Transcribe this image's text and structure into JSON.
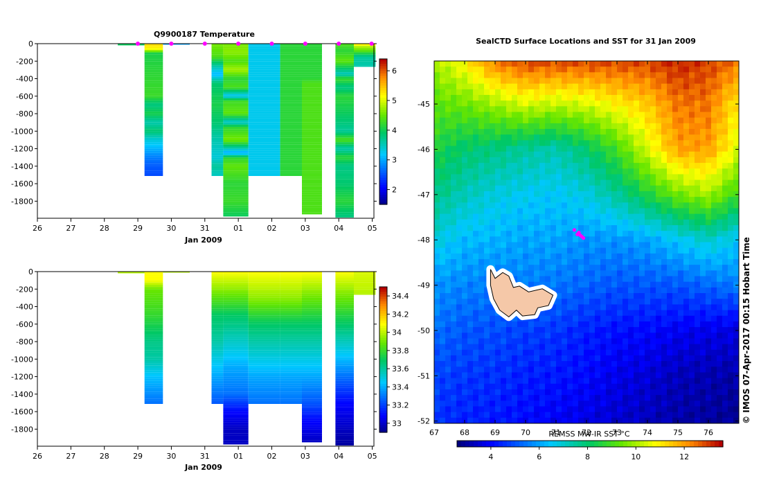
{
  "chart_data": [
    {
      "id": "temperature-section",
      "type": "heatmap",
      "title": "Q9900187  Temperature",
      "xlabel": "Jan 2009",
      "x_ticks": [
        "26",
        "27",
        "28",
        "29",
        "30",
        "31",
        "01",
        "02",
        "03",
        "04",
        "05"
      ],
      "y_ticks": [
        "0",
        "-200",
        "-400",
        "-600",
        "-800",
        "-1000",
        "-1200",
        "-1400",
        "-1600",
        "-1800"
      ],
      "xlim": [
        26,
        36.05
      ],
      "ylim": [
        -1995,
        0
      ],
      "colorbar_ticks": [
        "2",
        "3",
        "4",
        "5",
        "6"
      ],
      "colorbar_range": [
        1.5,
        6.4
      ],
      "surface_markers_x": [
        29.0,
        30.0,
        31.0,
        32.0,
        33.0,
        34.0,
        35.0,
        35.98
      ],
      "columns": [
        {
          "x0": 28.4,
          "x1": 29.2,
          "maxdepth": 20,
          "profile": [
            [
              0,
              4.0
            ],
            [
              20,
              4.0
            ]
          ]
        },
        {
          "x0": 29.2,
          "x1": 29.75,
          "maxdepth": 1505,
          "profile": [
            [
              0,
              5.4
            ],
            [
              60,
              5.2
            ],
            [
              110,
              4.1
            ],
            [
              300,
              4.2
            ],
            [
              600,
              4.3
            ],
            [
              700,
              3.8
            ],
            [
              800,
              4.1
            ],
            [
              900,
              3.6
            ],
            [
              1000,
              3.9
            ],
            [
              1100,
              3.4
            ],
            [
              1200,
              3.1
            ],
            [
              1300,
              2.8
            ],
            [
              1400,
              2.6
            ],
            [
              1505,
              2.5
            ]
          ]
        },
        {
          "x0": 29.75,
          "x1": 30.55,
          "maxdepth": 10,
          "profile": [
            [
              0,
              3.0
            ],
            [
              10,
              3.0
            ]
          ]
        },
        {
          "x0": 31.2,
          "x1": 31.55,
          "maxdepth": 1510,
          "profile": [
            [
              0,
              4.6
            ],
            [
              150,
              4.4
            ],
            [
              250,
              3.7
            ],
            [
              350,
              3.1
            ],
            [
              450,
              3.9
            ],
            [
              700,
              4.1
            ],
            [
              900,
              3.9
            ],
            [
              1100,
              3.6
            ],
            [
              1300,
              3.4
            ],
            [
              1400,
              3.7
            ],
            [
              1510,
              3.5
            ]
          ]
        },
        {
          "x0": 31.55,
          "x1": 32.3,
          "maxdepth": 1975,
          "profile": [
            [
              0,
              4.6
            ],
            [
              100,
              4.7
            ],
            [
              200,
              4.4
            ],
            [
              300,
              4.8
            ],
            [
              400,
              4.2
            ],
            [
              500,
              4.4
            ],
            [
              600,
              3.2
            ],
            [
              650,
              4.3
            ],
            [
              800,
              4.5
            ],
            [
              900,
              3.4
            ],
            [
              950,
              4.2
            ],
            [
              1100,
              4.6
            ],
            [
              1150,
              4.1
            ],
            [
              1250,
              3.0
            ],
            [
              1300,
              4.2
            ],
            [
              1400,
              4.5
            ],
            [
              1600,
              4.2
            ],
            [
              1800,
              4.3
            ],
            [
              1975,
              4.0
            ]
          ]
        },
        {
          "x0": 32.3,
          "x1": 33.25,
          "maxdepth": 1510,
          "profile": [
            [
              0,
              3.3
            ],
            [
              1510,
              3.3
            ]
          ]
        },
        {
          "x0": 33.25,
          "x1": 33.9,
          "maxdepth": 1510,
          "profile": [
            [
              0,
              4.2
            ],
            [
              1510,
              4.2
            ]
          ]
        },
        {
          "x0": 33.9,
          "x1": 34.5,
          "maxdepth": 1950,
          "profile": [
            [
              0,
              4.2
            ],
            [
              400,
              4.2
            ],
            [
              450,
              4.4
            ],
            [
              1950,
              4.4
            ]
          ]
        },
        {
          "x0": 34.9,
          "x1": 35.45,
          "maxdepth": 1985,
          "profile": [
            [
              0,
              4.4
            ],
            [
              80,
              4.2
            ],
            [
              200,
              4.5
            ],
            [
              350,
              3.5
            ],
            [
              400,
              4.3
            ],
            [
              500,
              3.8
            ],
            [
              600,
              4.2
            ],
            [
              800,
              4.0
            ],
            [
              1000,
              3.7
            ],
            [
              1100,
              4.4
            ],
            [
              1200,
              3.6
            ],
            [
              1300,
              4.2
            ],
            [
              1400,
              3.8
            ],
            [
              1600,
              3.9
            ],
            [
              1800,
              4.2
            ],
            [
              1985,
              3.8
            ]
          ]
        },
        {
          "x0": 35.45,
          "x1": 36.1,
          "maxdepth": 265,
          "profile": [
            [
              0,
              5.4
            ],
            [
              30,
              4.9
            ],
            [
              80,
              4.5
            ],
            [
              150,
              3.7
            ],
            [
              265,
              3.6
            ]
          ]
        }
      ]
    },
    {
      "id": "salinity-section",
      "type": "heatmap",
      "xlabel": "Jan 2009",
      "x_ticks": [
        "26",
        "27",
        "28",
        "29",
        "30",
        "31",
        "01",
        "02",
        "03",
        "04",
        "05"
      ],
      "y_ticks": [
        "0",
        "-200",
        "-400",
        "-600",
        "-800",
        "-1000",
        "-1200",
        "-1400",
        "-1600",
        "-1800"
      ],
      "xlim": [
        26,
        36.05
      ],
      "ylim": [
        -1995,
        0
      ],
      "colorbar_ticks": [
        "33",
        "33.2",
        "33.4",
        "33.6",
        "33.8",
        "34",
        "34.2",
        "34.4"
      ],
      "colorbar_range": [
        32.9,
        34.5
      ],
      "columns": [
        {
          "x0": 28.4,
          "x1": 29.2,
          "maxdepth": 20,
          "profile": [
            [
              0,
              34.0
            ],
            [
              20,
              34.0
            ]
          ]
        },
        {
          "x0": 29.2,
          "x1": 29.75,
          "maxdepth": 1505,
          "profile": [
            [
              0,
              34.1
            ],
            [
              100,
              34.1
            ],
            [
              200,
              33.9
            ],
            [
              500,
              33.8
            ],
            [
              800,
              33.65
            ],
            [
              1000,
              33.6
            ],
            [
              1200,
              33.45
            ],
            [
              1400,
              33.35
            ],
            [
              1505,
              33.3
            ]
          ]
        },
        {
          "x0": 29.75,
          "x1": 30.55,
          "maxdepth": 10,
          "profile": [
            [
              0,
              34.0
            ],
            [
              10,
              34.0
            ]
          ]
        },
        {
          "x0": 31.2,
          "x1": 31.55,
          "maxdepth": 1510,
          "profile": [
            [
              0,
              34.1
            ],
            [
              200,
              33.95
            ],
            [
              500,
              33.7
            ],
            [
              800,
              33.6
            ],
            [
              1100,
              33.45
            ],
            [
              1300,
              33.35
            ],
            [
              1510,
              33.25
            ]
          ]
        },
        {
          "x0": 31.55,
          "x1": 32.3,
          "maxdepth": 1975,
          "profile": [
            [
              0,
              34.1
            ],
            [
              200,
              33.95
            ],
            [
              500,
              33.7
            ],
            [
              800,
              33.55
            ],
            [
              1100,
              33.4
            ],
            [
              1400,
              33.3
            ],
            [
              1600,
              33.1
            ],
            [
              1800,
              33.0
            ],
            [
              1975,
              33.0
            ]
          ]
        },
        {
          "x0": 32.3,
          "x1": 33.25,
          "maxdepth": 1510,
          "profile": [
            [
              0,
              34.1
            ],
            [
              300,
              33.95
            ],
            [
              600,
              33.7
            ],
            [
              900,
              33.55
            ],
            [
              1200,
              33.4
            ],
            [
              1510,
              33.3
            ]
          ]
        },
        {
          "x0": 33.25,
          "x1": 33.9,
          "maxdepth": 1510,
          "profile": [
            [
              0,
              34.1
            ],
            [
              300,
              33.95
            ],
            [
              600,
              33.7
            ],
            [
              900,
              33.55
            ],
            [
              1200,
              33.4
            ],
            [
              1510,
              33.3
            ]
          ]
        },
        {
          "x0": 33.9,
          "x1": 34.5,
          "maxdepth": 1950,
          "profile": [
            [
              0,
              34.1
            ],
            [
              300,
              33.9
            ],
            [
              600,
              33.7
            ],
            [
              900,
              33.55
            ],
            [
              1200,
              33.4
            ],
            [
              1500,
              33.25
            ],
            [
              1700,
              33.1
            ],
            [
              1950,
              33.0
            ]
          ]
        },
        {
          "x0": 34.9,
          "x1": 35.45,
          "maxdepth": 1985,
          "profile": [
            [
              0,
              34.1
            ],
            [
              300,
              33.9
            ],
            [
              600,
              33.7
            ],
            [
              900,
              33.5
            ],
            [
              1200,
              33.3
            ],
            [
              1500,
              33.1
            ],
            [
              1800,
              33.0
            ],
            [
              1985,
              32.95
            ]
          ]
        },
        {
          "x0": 35.45,
          "x1": 36.1,
          "maxdepth": 265,
          "profile": [
            [
              0,
              34.05
            ],
            [
              265,
              34.0
            ]
          ]
        }
      ]
    },
    {
      "id": "sst-map",
      "type": "heatmap",
      "title": "SealCTD Surface Locations and SST for 31 Jan 2009",
      "x_ticks": [
        "67",
        "68",
        "69",
        "70",
        "71",
        "72",
        "73",
        "74",
        "75",
        "76"
      ],
      "y_ticks": [
        "-45",
        "-46",
        "-47",
        "-48",
        "-49",
        "-50",
        "-51",
        "-52"
      ],
      "xlim": [
        67,
        77
      ],
      "ylim": [
        -52.05,
        -44.05
      ],
      "colorbar_label": "REMSS MW-IR SST °C",
      "colorbar_ticks": [
        "4",
        "6",
        "8",
        "10",
        "12"
      ],
      "colorbar_range": [
        2.6,
        13.6
      ],
      "sst_field": {
        "x": [
          67,
          68,
          69,
          70,
          71,
          72,
          73,
          74,
          75,
          76,
          77
        ],
        "y": [
          -44.05,
          -45,
          -46,
          -47,
          -48,
          -49,
          -50,
          -51,
          -52.05
        ],
        "sst": [
          [
            10.0,
            11.0,
            12.5,
            13.0,
            13.0,
            13.0,
            13.0,
            13.0,
            13.3,
            13.0,
            12.5
          ],
          [
            9.3,
            9.5,
            10.0,
            10.5,
            10.3,
            10.5,
            11.0,
            11.5,
            12.5,
            12.5,
            11.0
          ],
          [
            8.5,
            8.0,
            7.8,
            7.5,
            7.3,
            8.0,
            9.0,
            10.5,
            12.0,
            12.0,
            10.5
          ],
          [
            7.8,
            7.2,
            6.8,
            6.6,
            6.5,
            6.8,
            7.5,
            8.5,
            9.5,
            10.0,
            8.8
          ],
          [
            6.8,
            6.3,
            6.2,
            6.0,
            6.0,
            5.8,
            5.8,
            6.0,
            6.5,
            7.0,
            6.5
          ],
          [
            5.8,
            5.6,
            5.5,
            5.5,
            5.4,
            5.2,
            5.0,
            5.0,
            5.0,
            5.2,
            5.5
          ],
          [
            5.3,
            5.0,
            4.9,
            4.7,
            4.6,
            4.3,
            4.1,
            4.0,
            3.8,
            3.7,
            3.6
          ],
          [
            4.8,
            4.6,
            4.5,
            4.3,
            4.2,
            4.0,
            3.7,
            3.5,
            3.2,
            3.1,
            3.0
          ],
          [
            4.5,
            4.3,
            4.2,
            4.0,
            3.8,
            3.6,
            3.4,
            3.2,
            3.0,
            2.9,
            2.8
          ]
        ]
      },
      "island_outline": [
        [
          68.85,
          -48.65
        ],
        [
          69.0,
          -48.85
        ],
        [
          69.25,
          -48.72
        ],
        [
          69.45,
          -48.8
        ],
        [
          69.6,
          -49.05
        ],
        [
          69.8,
          -49.02
        ],
        [
          70.1,
          -49.15
        ],
        [
          70.55,
          -49.08
        ],
        [
          70.9,
          -49.22
        ],
        [
          70.75,
          -49.45
        ],
        [
          70.4,
          -49.5
        ],
        [
          70.3,
          -49.65
        ],
        [
          69.9,
          -49.68
        ],
        [
          69.7,
          -49.55
        ],
        [
          69.45,
          -49.7
        ],
        [
          69.15,
          -49.55
        ],
        [
          68.95,
          -49.3
        ],
        [
          68.85,
          -49.0
        ]
      ],
      "seal_track": [
        [
          71.6,
          -47.78
        ],
        [
          71.7,
          -47.88
        ],
        [
          71.75,
          -47.84
        ],
        [
          71.85,
          -47.93
        ],
        [
          71.9,
          -47.96
        ],
        [
          71.8,
          -47.9
        ]
      ]
    }
  ],
  "footer": {
    "copyright": "©  IMOS 07-Apr-2017 00:15 Hobart Time"
  },
  "colors": {
    "marker": "#ff00ff",
    "land_fill": "#f5c8a8",
    "land_edge": "#000000",
    "coast_halo": "#ffffff"
  }
}
